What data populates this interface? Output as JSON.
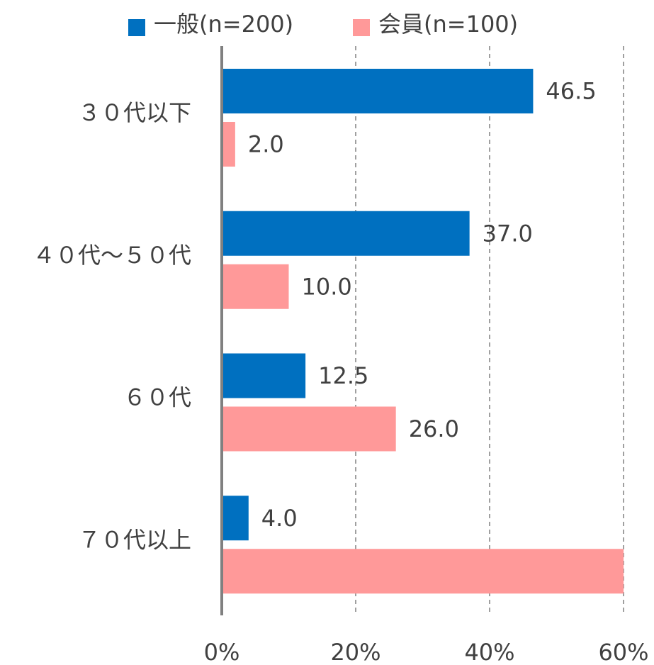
{
  "chart_data": {
    "type": "barh",
    "categories": [
      "３０代以下",
      "４０代～５０代",
      "６０代",
      "７０代以上"
    ],
    "series": [
      {
        "name": "一般(n=200)",
        "color": "#0070c0",
        "values": [
          46.5,
          37.0,
          12.5,
          4.0
        ],
        "value_labels": [
          "46.5",
          "37.0",
          "12.5",
          "4.0"
        ]
      },
      {
        "name": "会員(n=100)",
        "color": "#ff9999",
        "values": [
          2.0,
          10.0,
          26.0,
          60
        ],
        "value_labels": [
          "2.0",
          "10.0",
          "26.0",
          null
        ]
      }
    ],
    "xlim": [
      0,
      60
    ],
    "xticks": [
      {
        "value": 0,
        "label": "0%"
      },
      {
        "value": 20,
        "label": "20%"
      },
      {
        "value": 40,
        "label": "40%"
      },
      {
        "value": 60,
        "label": "60%"
      }
    ],
    "grid": true,
    "legend": "top"
  }
}
